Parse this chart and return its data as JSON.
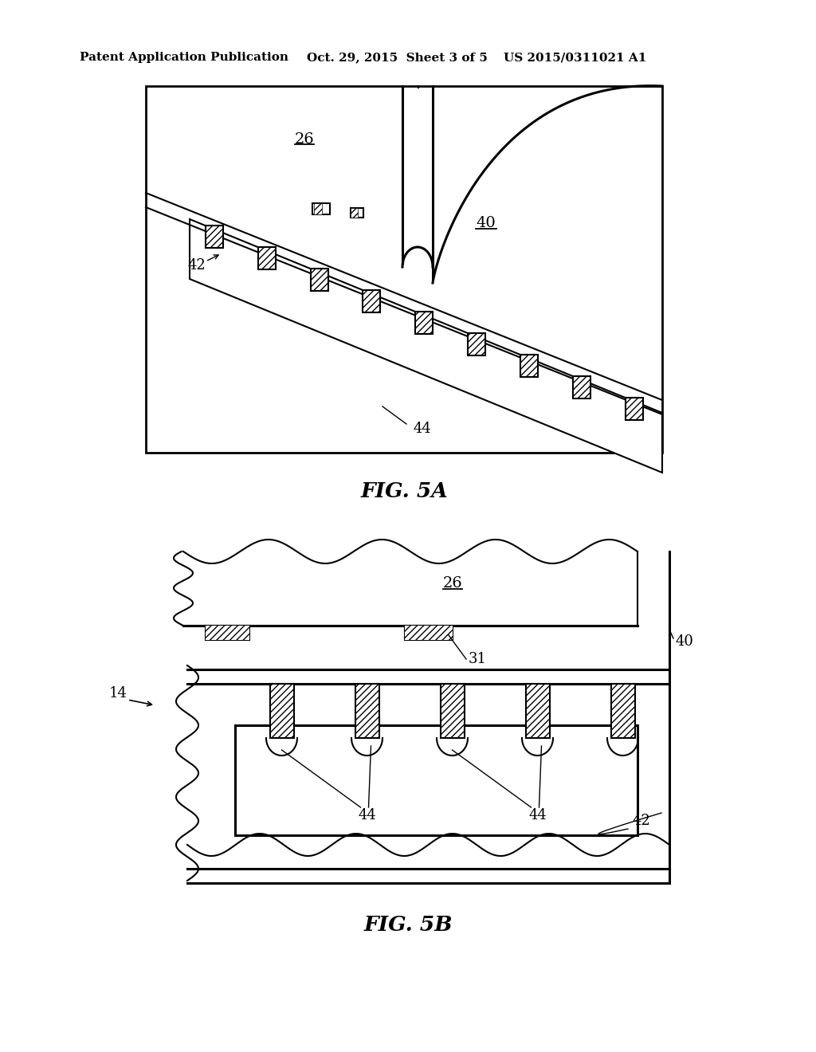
{
  "bg_color": "#ffffff",
  "header_text": "Patent Application Publication",
  "header_date": "Oct. 29, 2015  Sheet 3 of 5",
  "header_patent": "US 2015/0311021 A1",
  "fig5a_title": "FIG. 5A",
  "fig5b_title": "FIG. 5B",
  "label_26_5a": "26",
  "label_40_5a": "40",
  "label_42_5a": "42",
  "label_44_5a": "44",
  "label_26_5b": "26",
  "label_31_5b": "31",
  "label_40_5b": "40",
  "label_42_5b": "42",
  "label_44_5b_1": "44",
  "label_44_5b_2": "44",
  "label_14_5b": "14"
}
